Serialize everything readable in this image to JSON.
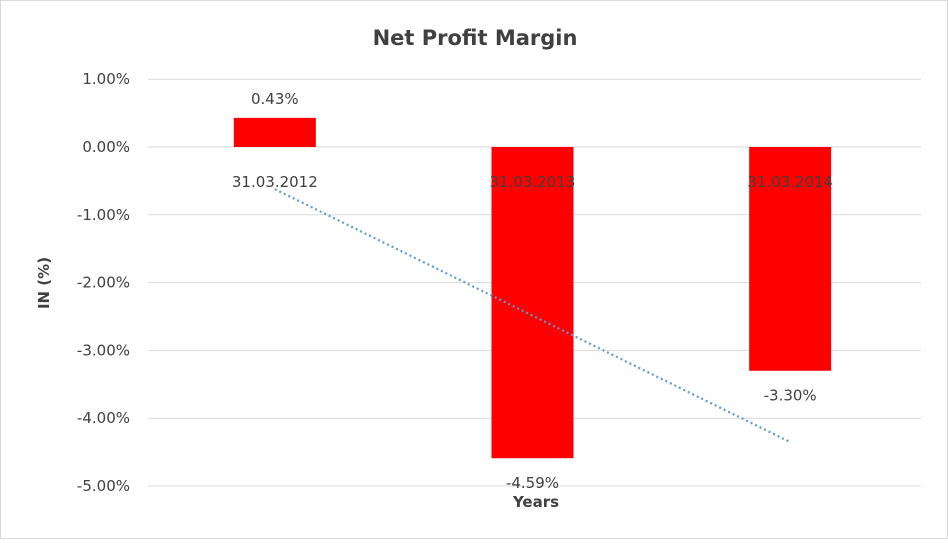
{
  "chart_data": {
    "type": "bar",
    "title": "Net Profit Margin",
    "xlabel": "Years",
    "ylabel": "IN (%)",
    "categories": [
      "31.03.2012",
      "31.03.2013",
      "31.03.2014"
    ],
    "values": [
      0.43,
      -4.59,
      -3.3
    ],
    "data_labels": [
      "0.43%",
      "-4.59%",
      "-3.30%"
    ],
    "ylim": [
      -5,
      1
    ],
    "yticks": [
      1,
      0,
      -1,
      -2,
      -3,
      -4,
      -5
    ],
    "ytick_labels": [
      "1.00%",
      "0.00%",
      "-1.00%",
      "-2.00%",
      "-3.00%",
      "-4.00%",
      "-5.00%"
    ],
    "grid": true,
    "trendline": "linear",
    "colors": {
      "bar": "#ff0000",
      "trendline": "#5b9bd5",
      "grid": "#d9d9d9"
    }
  }
}
